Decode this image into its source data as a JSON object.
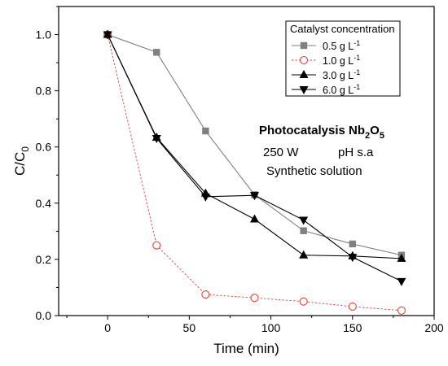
{
  "chart_data": {
    "type": "line",
    "title": "",
    "xlabel": "Time (min)",
    "ylabel": {
      "main": "C/C",
      "sub": "0"
    },
    "xlim": [
      -30,
      200
    ],
    "ylim": [
      0.0,
      1.1
    ],
    "x_ticks": [
      0,
      50,
      100,
      150,
      200
    ],
    "x_tick_labels": [
      "0",
      "50",
      "100",
      "150",
      "200"
    ],
    "y_ticks": [
      0.0,
      0.2,
      0.4,
      0.6,
      0.8,
      1.0
    ],
    "y_tick_labels": [
      "0.0",
      "0.2",
      "0.4",
      "0.6",
      "0.8",
      "1.0"
    ],
    "grid": false,
    "legend": {
      "title": "Catalyst concentration",
      "placement": "top-right"
    },
    "x": [
      0,
      30,
      60,
      90,
      120,
      150,
      180
    ],
    "series": [
      {
        "label": {
          "main": "0.5 g L",
          "sup": "-1"
        },
        "values": [
          1.0,
          0.937,
          0.657,
          0.43,
          0.302,
          0.255,
          0.215
        ],
        "color": "#808080",
        "marker": "square-filled",
        "dash": "none"
      },
      {
        "label": {
          "main": "1.0 g L",
          "sup": "-1"
        },
        "values": [
          1.0,
          0.25,
          0.075,
          0.063,
          0.05,
          0.032,
          0.018
        ],
        "color": "#e8413c",
        "marker": "circle-open",
        "dash": "dotted"
      },
      {
        "label": {
          "main": "3.0 g L",
          "sup": "-1"
        },
        "values": [
          1.0,
          0.634,
          0.435,
          0.343,
          0.215,
          0.212,
          0.203
        ],
        "color": "#000000",
        "marker": "triangle-up-filled",
        "dash": "none"
      },
      {
        "label": {
          "main": "6.0 g L",
          "sup": "-1"
        },
        "values": [
          1.0,
          0.631,
          0.423,
          0.428,
          0.34,
          0.208,
          0.122
        ],
        "color": "#000000",
        "marker": "triangle-down-filled",
        "dash": "none"
      }
    ],
    "annotations": [
      {
        "main": "Photocatalysis Nb",
        "sub1": "2",
        "mid": "O",
        "sub2": "5"
      },
      {
        "left": "250 W",
        "right": "pH s.a"
      },
      {
        "text": "Synthetic solution"
      }
    ]
  }
}
